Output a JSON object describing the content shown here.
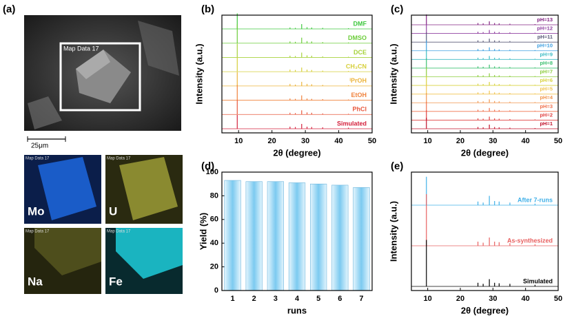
{
  "image_panel": {
    "label": "(a)",
    "map_title": "Map Data 17",
    "scale_bar": "25μm",
    "maps": [
      {
        "element": "Mo",
        "title": "Map Data 17"
      },
      {
        "element": "U",
        "title": "Map Data 17"
      },
      {
        "element": "Na",
        "title": "Map Data 17"
      },
      {
        "element": "Fe",
        "title": "Map Data 17"
      }
    ]
  },
  "chart_data": [
    {
      "type": "stem",
      "label": "(b)",
      "x_label": "2θ (degree)",
      "y_label": "Intensity (a.u.)",
      "xlim": [
        5,
        50
      ],
      "xticks": [
        10,
        20,
        30,
        40,
        50
      ],
      "x": [
        9.6,
        25.4,
        27.0,
        28.9,
        30.5,
        31.9,
        35.2,
        42.9
      ],
      "series": [
        {
          "name": "DMF",
          "color": "#3ec83e",
          "values": [
            45,
            4,
            3,
            14,
            5,
            4,
            3,
            2
          ]
        },
        {
          "name": "DMSO",
          "color": "#6ccd3a",
          "values": [
            55,
            5,
            4,
            16,
            6,
            5,
            3,
            2
          ]
        },
        {
          "name": "DCE",
          "color": "#a6d23a",
          "values": [
            40,
            5,
            4,
            14,
            6,
            5,
            3,
            2
          ]
        },
        {
          "name": "CH₃CN",
          "color": "#d6cf3a",
          "values": [
            42,
            6,
            5,
            12,
            6,
            5,
            3,
            2
          ]
        },
        {
          "name": "ⁱPrOH",
          "color": "#ecb43c",
          "values": [
            40,
            6,
            4,
            12,
            6,
            5,
            3,
            2
          ]
        },
        {
          "name": "EtOH",
          "color": "#f0823c",
          "values": [
            44,
            5,
            4,
            14,
            5,
            4,
            3,
            2
          ]
        },
        {
          "name": "PhCl",
          "color": "#e8573c",
          "values": [
            42,
            5,
            4,
            12,
            6,
            5,
            3,
            2
          ]
        },
        {
          "name": "Simulated",
          "color": "#d4203c",
          "values": [
            40,
            6,
            5,
            14,
            6,
            5,
            4,
            3
          ]
        }
      ]
    },
    {
      "type": "stem",
      "label": "(c)",
      "x_label": "2θ (degree)",
      "y_label": "Intensity (a.u.)",
      "xlim": [
        5,
        50
      ],
      "xticks": [
        10,
        20,
        30,
        40,
        50
      ],
      "x": [
        9.6,
        25.4,
        27.0,
        28.9,
        30.5,
        31.9,
        35.2,
        42.9
      ],
      "series": [
        {
          "name": "pH=13",
          "color": "#802080",
          "values": [
            30,
            5,
            4,
            10,
            5,
            4,
            3,
            2
          ]
        },
        {
          "name": "pH=12",
          "color": "#9040a0",
          "values": [
            28,
            5,
            4,
            10,
            5,
            4,
            3,
            2
          ]
        },
        {
          "name": "pH=11",
          "color": "#5a5a78",
          "values": [
            28,
            5,
            4,
            10,
            5,
            4,
            3,
            2
          ]
        },
        {
          "name": "pH=10",
          "color": "#3c9ee0",
          "values": [
            30,
            5,
            4,
            10,
            5,
            4,
            3,
            2
          ]
        },
        {
          "name": "pH=9",
          "color": "#3cbcc4",
          "values": [
            28,
            5,
            4,
            10,
            5,
            4,
            3,
            2
          ]
        },
        {
          "name": "pH=8",
          "color": "#3cc070",
          "values": [
            28,
            5,
            4,
            10,
            5,
            4,
            3,
            2
          ]
        },
        {
          "name": "pH=7",
          "color": "#8ccc3c",
          "values": [
            28,
            5,
            4,
            10,
            5,
            4,
            3,
            2
          ]
        },
        {
          "name": "pH=6",
          "color": "#d8d23c",
          "values": [
            28,
            5,
            4,
            10,
            5,
            4,
            3,
            2
          ]
        },
        {
          "name": "pH=5",
          "color": "#f0c450",
          "values": [
            28,
            5,
            4,
            10,
            5,
            4,
            3,
            2
          ]
        },
        {
          "name": "pH=4",
          "color": "#f0944c",
          "values": [
            28,
            5,
            4,
            10,
            5,
            4,
            3,
            2
          ]
        },
        {
          "name": "pH=3",
          "color": "#f0704c",
          "values": [
            28,
            5,
            4,
            10,
            5,
            4,
            3,
            2
          ]
        },
        {
          "name": "pH=2",
          "color": "#e04040",
          "values": [
            28,
            5,
            4,
            10,
            5,
            4,
            3,
            2
          ]
        },
        {
          "name": "pH=1",
          "color": "#c0102a",
          "values": [
            32,
            5,
            4,
            12,
            5,
            4,
            3,
            2
          ]
        }
      ]
    },
    {
      "type": "bar",
      "label": "(d)",
      "x_label": "runs",
      "y_label": "Yield (%)",
      "categories": [
        "1",
        "2",
        "3",
        "4",
        "5",
        "6",
        "7"
      ],
      "values": [
        93,
        92,
        92,
        91,
        90,
        89,
        87
      ],
      "color": "#7ccaf0",
      "ylim": [
        0,
        100
      ],
      "yticks": [
        0,
        20,
        40,
        60,
        80,
        100
      ]
    },
    {
      "type": "stem",
      "label": "(e)",
      "x_label": "2θ (degree)",
      "y_label": "Intensity (a.u.)",
      "xlim": [
        5,
        50
      ],
      "xticks": [
        10,
        20,
        30,
        40,
        50
      ],
      "x": [
        9.6,
        25.4,
        27.0,
        28.9,
        30.5,
        31.9,
        35.2,
        42.9
      ],
      "series": [
        {
          "name": "After 7-runs",
          "color": "#40b0e8",
          "values": [
            55,
            7,
            5,
            18,
            8,
            7,
            5,
            3
          ]
        },
        {
          "name": "As-synthesized",
          "color": "#e86060",
          "values": [
            100,
            8,
            6,
            16,
            8,
            7,
            5,
            3
          ]
        },
        {
          "name": "Simulated",
          "color": "#000000",
          "values": [
            90,
            7,
            5,
            14,
            7,
            6,
            5,
            3
          ]
        }
      ]
    }
  ]
}
